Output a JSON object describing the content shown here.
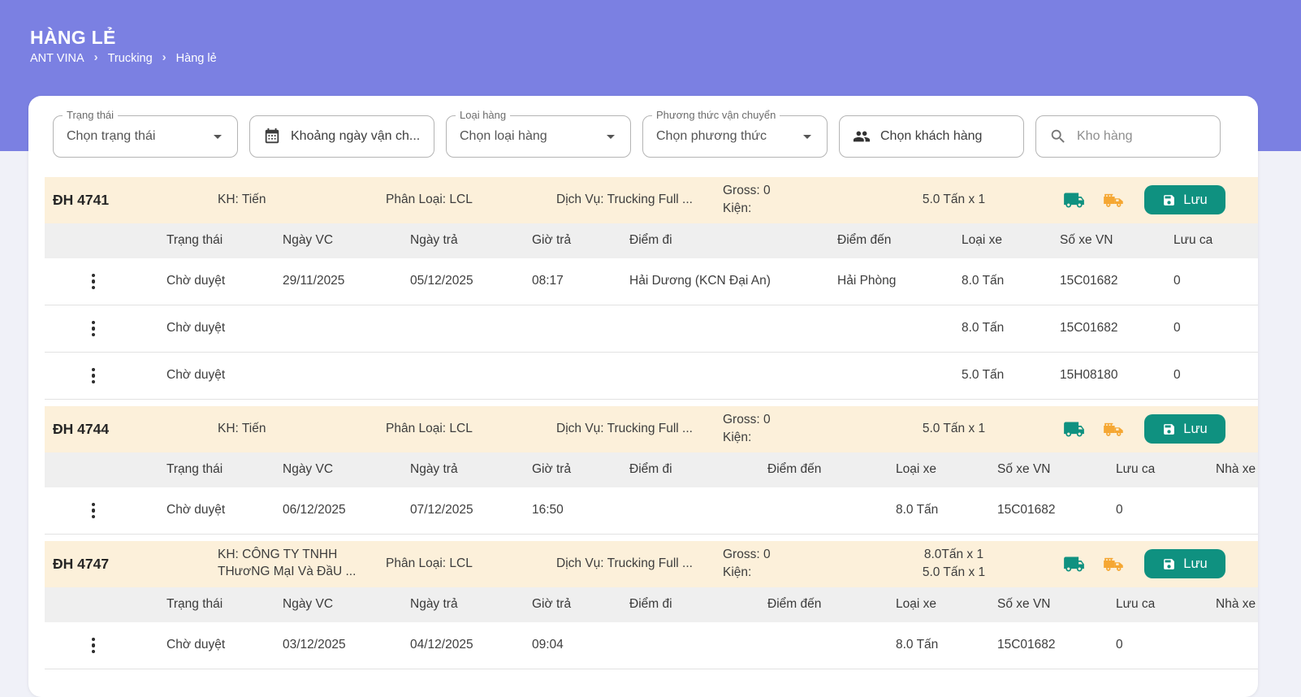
{
  "page": {
    "title": "HÀNG LẺ",
    "breadcrumb": [
      "ANT VINA",
      "Trucking",
      "Hàng lẻ"
    ]
  },
  "filters": {
    "status": {
      "label": "Trạng thái",
      "value": "Chọn trạng thái"
    },
    "date_range": {
      "value": "Khoảng ngày vận ch..."
    },
    "cargo_type": {
      "label": "Loại hàng",
      "value": "Chọn loại hàng"
    },
    "transport_method": {
      "label": "Phương thức vận chuyển",
      "value": "Chọn phương thức"
    },
    "customer": {
      "value": "Chọn khách hàng"
    },
    "warehouse": {
      "placeholder": "Kho hàng"
    }
  },
  "icons": {
    "calendar": "calendar-icon",
    "people": "people-icon",
    "search": "search-icon",
    "delivery_truck": "delivery-truck-icon",
    "fire_truck": "fire-truck-icon",
    "save": "save-icon"
  },
  "colors": {
    "header_purple": "#7b80e2",
    "band_cream": "#fcf0da",
    "teal_accent": "#0f9180",
    "orange_accent": "#f5a733"
  },
  "orders": [
    {
      "id": "ĐH 4741",
      "customer": "KH: Tiến",
      "classification": "Phân Loại: LCL",
      "service": "Dịch Vụ: Trucking Full ...",
      "gross": "Gross: 0",
      "pieces": "Kiện:",
      "tonnage": [
        "5.0 Tấn x 1"
      ],
      "save_label": "Lưu",
      "columns": [
        "Trạng thái",
        "Ngày VC",
        "Ngày trả",
        "Giờ trả",
        "Điểm đi",
        "Điểm đến",
        "Loại xe",
        "Số xe VN",
        "Lưu ca"
      ],
      "rows": [
        {
          "status": "Chờ duyệt",
          "ngay_vc": "29/11/2025",
          "ngay_tra": "05/12/2025",
          "gio_tra": "08:17",
          "diem_di": "Hải Dương (KCN Đại An)",
          "diem_den": "Hải Phòng",
          "loai_xe": "8.0 Tấn",
          "so_xe": "15C01682",
          "luu_ca": "0"
        },
        {
          "status": "Chờ duyệt",
          "ngay_vc": "",
          "ngay_tra": "",
          "gio_tra": "",
          "diem_di": "",
          "diem_den": "",
          "loai_xe": "8.0 Tấn",
          "so_xe": "15C01682",
          "luu_ca": "0"
        },
        {
          "status": "Chờ duyệt",
          "ngay_vc": "",
          "ngay_tra": "",
          "gio_tra": "",
          "diem_di": "",
          "diem_den": "",
          "loai_xe": "5.0 Tấn",
          "so_xe": "15H08180",
          "luu_ca": "0"
        }
      ]
    },
    {
      "id": "ĐH 4744",
      "customer": "KH: Tiến",
      "classification": "Phân Loại: LCL",
      "service": "Dịch Vụ: Trucking Full ...",
      "gross": "Gross: 0",
      "pieces": "Kiện:",
      "tonnage": [
        "5.0 Tấn x 1"
      ],
      "save_label": "Lưu",
      "columns": [
        "Trạng thái",
        "Ngày VC",
        "Ngày trả",
        "Giờ trả",
        "Điểm đi",
        "Điểm đến",
        "Loại xe",
        "Số xe VN",
        "Lưu ca",
        "Nhà xe"
      ],
      "rows": [
        {
          "status": "Chờ duyệt",
          "ngay_vc": "06/12/2025",
          "ngay_tra": "07/12/2025",
          "gio_tra": "16:50",
          "diem_di": "",
          "diem_den": "",
          "loai_xe": "8.0 Tấn",
          "so_xe": "15C01682",
          "luu_ca": "0",
          "nha_xe": ""
        }
      ]
    },
    {
      "id": "ĐH 4747",
      "customer": "KH: CÔNG TY TNHH THươNG MạI Và ĐầU ...",
      "classification": "Phân Loại: LCL",
      "service": "Dịch Vụ: Trucking Full ...",
      "gross": "Gross: 0",
      "pieces": "Kiện:",
      "tonnage": [
        "8.0Tấn x 1",
        "5.0 Tấn x 1"
      ],
      "save_label": "Lưu",
      "columns": [
        "Trạng thái",
        "Ngày VC",
        "Ngày trả",
        "Giờ trả",
        "Điểm đi",
        "Điểm đến",
        "Loại xe",
        "Số xe VN",
        "Lưu ca",
        "Nhà xe"
      ],
      "rows": [
        {
          "status": "Chờ duyệt",
          "ngay_vc": "03/12/2025",
          "ngay_tra": "04/12/2025",
          "gio_tra": "09:04",
          "diem_di": "",
          "diem_den": "",
          "loai_xe": "8.0 Tấn",
          "so_xe": "15C01682",
          "luu_ca": "0",
          "nha_xe": ""
        }
      ]
    }
  ]
}
